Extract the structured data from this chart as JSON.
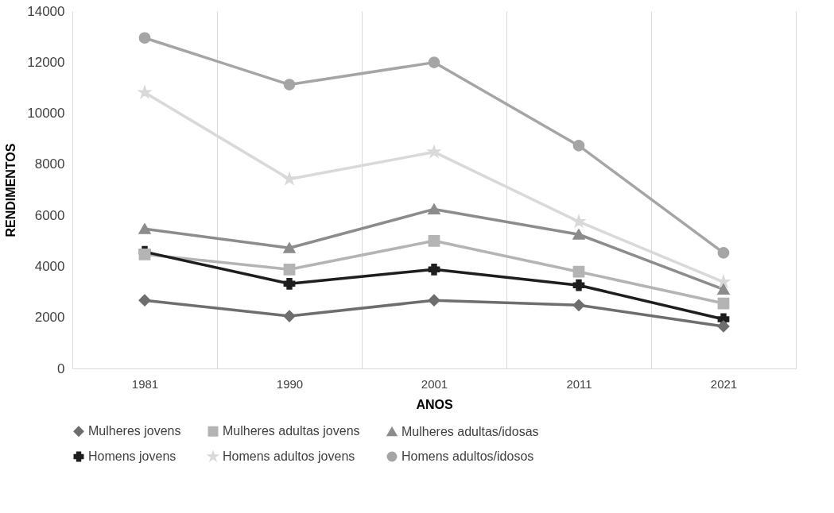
{
  "chart_data": {
    "type": "line",
    "xlabel": "ANOS",
    "ylabel": "RENDIMENTOS",
    "categories": [
      "1981",
      "1990",
      "2001",
      "2011",
      "2021"
    ],
    "ylim": [
      0,
      14000
    ],
    "yticks": [
      0,
      2000,
      4000,
      6000,
      8000,
      10000,
      12000,
      14000
    ],
    "grid": "x",
    "legend": "bottom",
    "series": [
      {
        "name": "Mulheres jovens",
        "color": "#6e6e6e",
        "marker": "diamond",
        "values": [
          2670,
          2050,
          2670,
          2480,
          1650
        ]
      },
      {
        "name": "Mulheres adultas jovens",
        "color": "#b4b4b4",
        "marker": "square",
        "values": [
          4470,
          3880,
          5000,
          3790,
          2550
        ]
      },
      {
        "name": "Mulheres adultas/idosas",
        "color": "#8c8c8c",
        "marker": "triangle",
        "values": [
          5470,
          4720,
          6240,
          5250,
          3100
        ]
      },
      {
        "name": "Homens jovens",
        "color": "#1e1e1e",
        "marker": "cross",
        "values": [
          4570,
          3320,
          3880,
          3260,
          1930
        ]
      },
      {
        "name": "Homens adultos jovens",
        "color": "#d9d9d9",
        "marker": "star",
        "values": [
          10810,
          7420,
          8480,
          5750,
          3390
        ]
      },
      {
        "name": "Homens adultos/idosos",
        "color": "#a5a5a5",
        "marker": "circle",
        "values": [
          12950,
          11120,
          11990,
          8730,
          4530
        ]
      }
    ]
  }
}
